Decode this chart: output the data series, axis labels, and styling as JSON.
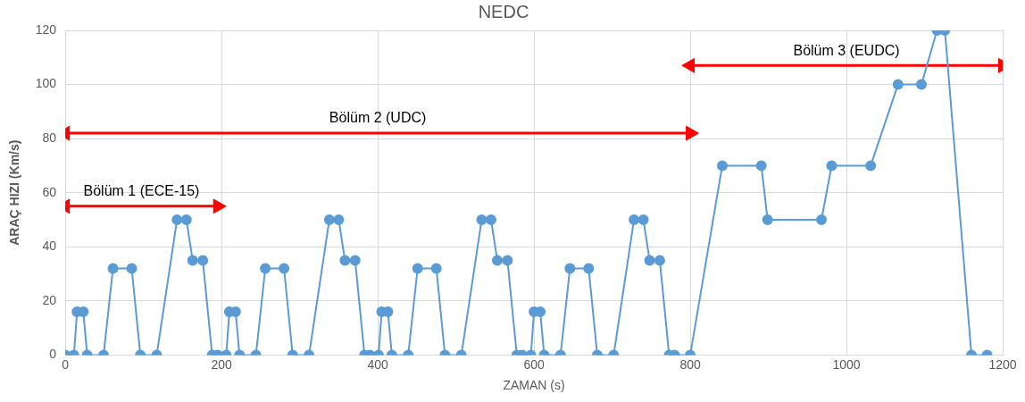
{
  "chart_data": {
    "type": "line",
    "title": "NEDC",
    "xlabel": "ZAMAN (s)",
    "ylabel": "ARAÇ HIZI (Km/s)",
    "x": [
      0,
      11,
      15,
      23,
      28,
      49,
      61,
      85,
      96,
      117,
      143,
      155,
      163,
      176,
      188,
      195,
      206,
      210,
      218,
      223,
      244,
      256,
      280,
      291,
      312,
      338,
      350,
      358,
      371,
      383,
      390,
      401,
      405,
      413,
      418,
      439,
      451,
      475,
      486,
      507,
      533,
      545,
      553,
      566,
      578,
      585,
      596,
      600,
      608,
      613,
      634,
      646,
      670,
      681,
      702,
      728,
      740,
      748,
      761,
      773,
      780,
      800,
      841,
      891,
      899,
      968,
      981,
      1031,
      1066,
      1096,
      1116,
      1126,
      1160,
      1180
    ],
    "series": [
      {
        "color": "#5b9bd5",
        "values": [
          0,
          0,
          16,
          16,
          0,
          0,
          32,
          32,
          0,
          0,
          50,
          50,
          35,
          35,
          0,
          0,
          0,
          16,
          16,
          0,
          0,
          32,
          32,
          0,
          0,
          50,
          50,
          35,
          35,
          0,
          0,
          0,
          16,
          16,
          0,
          0,
          32,
          32,
          0,
          0,
          50,
          50,
          35,
          35,
          0,
          0,
          0,
          16,
          16,
          0,
          0,
          32,
          32,
          0,
          0,
          50,
          50,
          35,
          35,
          0,
          0,
          0,
          70,
          70,
          50,
          50,
          70,
          70,
          100,
          100,
          120,
          120,
          0,
          0
        ]
      },
      {
        "name": "Bölüm 1 (ECE-15)",
        "color": "#ff0000",
        "x": [
          0,
          195
        ],
        "values": [
          55,
          55
        ],
        "marker": "triangle"
      },
      {
        "name": "Bölüm 2 (UDC)",
        "color": "#ff0000",
        "x": [
          0,
          800
        ],
        "values": [
          82,
          82
        ],
        "marker": "triangle"
      },
      {
        "name": "Bölüm 3 (EUDC)",
        "color": "#ff0000",
        "x": [
          800,
          1200
        ],
        "values": [
          107,
          107
        ],
        "marker": "triangle"
      }
    ],
    "xlim": [
      0,
      1200
    ],
    "xticks": [
      0,
      200,
      400,
      600,
      800,
      1000,
      1200
    ],
    "ylim": [
      0,
      120
    ],
    "yticks": [
      0,
      20,
      40,
      60,
      80,
      100,
      120
    ],
    "grid": true,
    "legend": false,
    "marker": "circle",
    "line_style": "solid"
  }
}
